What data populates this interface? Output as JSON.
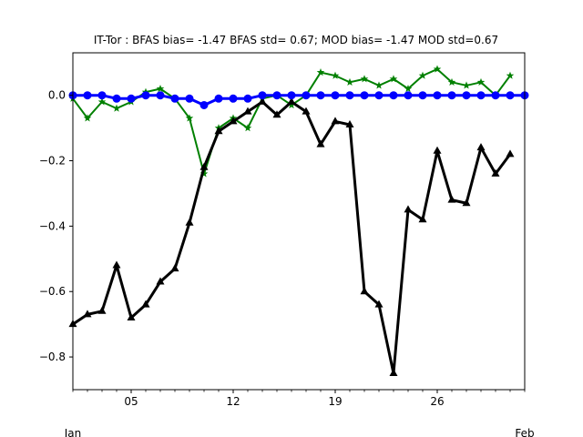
{
  "chart_data": {
    "type": "line",
    "title": "IT-Tor   : BFAS bias= -1.47 BFAS std= 0.67; MOD bias= -1.47 MOD std=0.67",
    "xlabel": "",
    "ylabel": "",
    "x_start": "2019-01-01",
    "x_end": "2019-02-01",
    "xlim": [
      "2019-01-01",
      "2019-02-01"
    ],
    "ylim": [
      -0.9,
      0.13
    ],
    "x_ticks": [
      {
        "date": "2019-01-05",
        "label": "05"
      },
      {
        "date": "2019-01-12",
        "label": "12"
      },
      {
        "date": "2019-01-19",
        "label": "19"
      },
      {
        "date": "2019-01-26",
        "label": "26"
      }
    ],
    "x_minor_labels": [
      {
        "date": "2019-01-01",
        "label": "Jan"
      },
      {
        "date": "2019-02-01",
        "label": "Feb"
      }
    ],
    "y_ticks": [
      0.0,
      -0.2,
      -0.4,
      -0.6,
      -0.8
    ],
    "y_tick_labels": [
      "0.0",
      "−0.2",
      "−0.4",
      "−0.6",
      "−0.8"
    ],
    "grid": false,
    "legend": "none",
    "x": [
      "2019-01-01",
      "2019-01-02",
      "2019-01-03",
      "2019-01-04",
      "2019-01-05",
      "2019-01-06",
      "2019-01-07",
      "2019-01-08",
      "2019-01-09",
      "2019-01-10",
      "2019-01-11",
      "2019-01-12",
      "2019-01-13",
      "2019-01-14",
      "2019-01-15",
      "2019-01-16",
      "2019-01-17",
      "2019-01-18",
      "2019-01-19",
      "2019-01-20",
      "2019-01-21",
      "2019-01-22",
      "2019-01-23",
      "2019-01-24",
      "2019-01-25",
      "2019-01-26",
      "2019-01-27",
      "2019-01-28",
      "2019-01-29",
      "2019-01-30",
      "2019-01-31",
      "2019-02-01"
    ],
    "series": [
      {
        "color": "#008000",
        "marker": "star",
        "linewidth": 2,
        "values": [
          -0.01,
          -0.07,
          -0.02,
          -0.04,
          -0.02,
          0.01,
          0.02,
          -0.01,
          -0.07,
          -0.24,
          -0.1,
          -0.07,
          -0.1,
          -0.01,
          0.0,
          -0.03,
          0.0,
          0.07,
          0.06,
          0.04,
          0.05,
          0.03,
          0.05,
          0.02,
          0.06,
          0.08,
          0.04,
          0.03,
          0.04,
          0.0,
          0.06,
          null
        ]
      },
      {
        "color": "#000000",
        "marker": "triangle",
        "linewidth": 3,
        "values": [
          -0.7,
          -0.67,
          -0.66,
          -0.52,
          -0.68,
          -0.64,
          -0.57,
          -0.53,
          -0.39,
          -0.22,
          -0.11,
          -0.08,
          -0.05,
          -0.02,
          -0.06,
          -0.02,
          -0.05,
          -0.15,
          -0.08,
          -0.09,
          -0.6,
          -0.64,
          -0.85,
          -0.35,
          -0.38,
          -0.17,
          -0.32,
          -0.33,
          -0.16,
          -0.24,
          -0.18,
          null
        ]
      },
      {
        "color": "#0000ff",
        "marker": "circle",
        "linewidth": 3,
        "values": [
          0.0,
          0.0,
          0.0,
          -0.01,
          -0.01,
          0.0,
          0.0,
          -0.01,
          -0.01,
          -0.03,
          -0.01,
          -0.01,
          -0.01,
          0.0,
          0.0,
          0.0,
          0.0,
          0.0,
          0.0,
          0.0,
          0.0,
          0.0,
          0.0,
          0.0,
          0.0,
          0.0,
          0.0,
          0.0,
          0.0,
          0.0,
          0.0,
          0.0
        ]
      }
    ]
  }
}
